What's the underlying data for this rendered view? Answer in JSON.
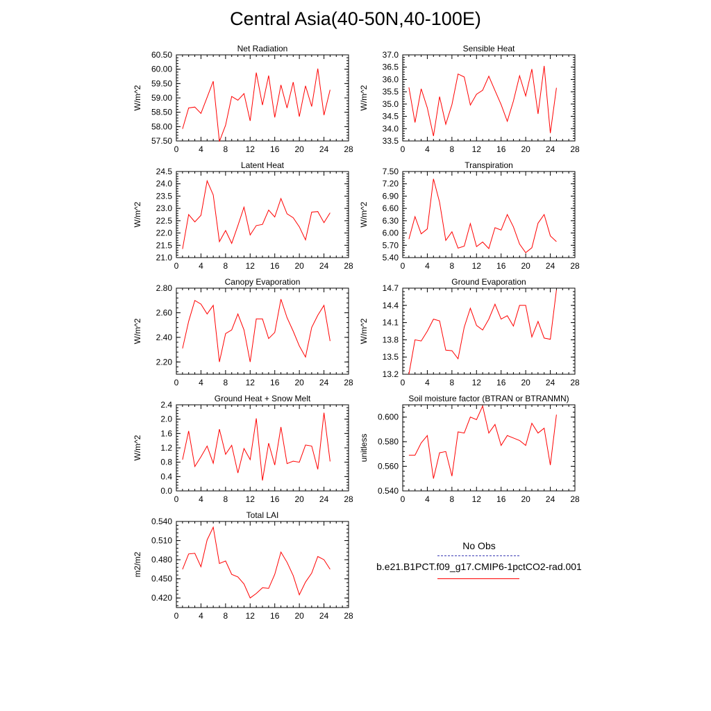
{
  "title": "Central Asia(40-50N,40-100E)",
  "colors": {
    "series": "#ff0000",
    "obs": "#3b3bb3",
    "axis": "#000000"
  },
  "legend": {
    "obs_label": "No Obs",
    "model_label": "b.e21.B1PCT.f09_g17.CMIP6-1pctCO2-rad.001"
  },
  "chart_data": [
    {
      "type": "line",
      "title": "Net Radiation",
      "ylabel": "W/m^2",
      "ylim": [
        57.5,
        60.5
      ],
      "xlim": [
        0,
        28
      ],
      "xticks": [
        0,
        4,
        8,
        12,
        16,
        20,
        24,
        28
      ],
      "yticks": [
        "57.50",
        "58.00",
        "58.50",
        "59.00",
        "59.50",
        "60.00",
        "60.50"
      ],
      "x": [
        1,
        2,
        3,
        4,
        5,
        6,
        7,
        8,
        9,
        10,
        11,
        12,
        13,
        14,
        15,
        16,
        17,
        18,
        19,
        20,
        21,
        22,
        23,
        24,
        25
      ],
      "values": [
        57.92,
        58.65,
        58.68,
        58.46,
        59.02,
        59.58,
        57.48,
        58.05,
        59.05,
        58.92,
        59.15,
        58.2,
        59.88,
        58.75,
        59.78,
        58.32,
        59.45,
        58.65,
        59.55,
        58.35,
        59.42,
        58.7,
        60.02,
        58.4,
        59.28
      ]
    },
    {
      "type": "line",
      "title": "Sensible Heat",
      "ylabel": "W/m^2",
      "ylim": [
        33.5,
        37.0
      ],
      "xlim": [
        0,
        28
      ],
      "xticks": [
        0,
        4,
        8,
        12,
        16,
        20,
        24,
        28
      ],
      "yticks": [
        "33.5",
        "34.0",
        "34.5",
        "35.0",
        "35.5",
        "36.0",
        "36.5",
        "37.0"
      ],
      "x": [
        1,
        2,
        3,
        4,
        5,
        6,
        7,
        8,
        9,
        10,
        11,
        12,
        13,
        14,
        15,
        16,
        17,
        18,
        19,
        20,
        21,
        22,
        23,
        24,
        25
      ],
      "values": [
        35.68,
        34.25,
        35.62,
        34.85,
        33.7,
        35.3,
        34.18,
        34.98,
        36.22,
        36.1,
        34.96,
        35.4,
        35.56,
        36.13,
        35.55,
        34.98,
        34.3,
        35.12,
        36.15,
        35.33,
        36.42,
        34.6,
        36.55,
        33.82,
        35.66
      ]
    },
    {
      "type": "line",
      "title": "Latent Heat",
      "ylabel": "W/m^2",
      "ylim": [
        21.0,
        24.5
      ],
      "xlim": [
        0,
        28
      ],
      "xticks": [
        0,
        4,
        8,
        12,
        16,
        20,
        24,
        28
      ],
      "yticks": [
        "21.0",
        "21.5",
        "22.0",
        "22.5",
        "23.0",
        "23.5",
        "24.0",
        "24.5"
      ],
      "x": [
        1,
        2,
        3,
        4,
        5,
        6,
        7,
        8,
        9,
        10,
        11,
        12,
        13,
        14,
        15,
        16,
        17,
        18,
        19,
        20,
        21,
        22,
        23,
        24,
        25
      ],
      "values": [
        21.35,
        22.75,
        22.45,
        22.72,
        24.12,
        23.55,
        21.65,
        22.1,
        21.58,
        22.3,
        23.05,
        21.92,
        22.3,
        22.35,
        22.93,
        22.65,
        23.4,
        22.78,
        22.62,
        22.25,
        21.72,
        22.85,
        22.87,
        22.42,
        22.82
      ]
    },
    {
      "type": "line",
      "title": "Transpiration",
      "ylabel": "W/m^2",
      "ylim": [
        5.4,
        7.5
      ],
      "xlim": [
        0,
        28
      ],
      "xticks": [
        0,
        4,
        8,
        12,
        16,
        20,
        24,
        28
      ],
      "yticks": [
        "5.40",
        "5.70",
        "6.00",
        "6.30",
        "6.60",
        "6.90",
        "7.20",
        "7.50"
      ],
      "x": [
        1,
        2,
        3,
        4,
        5,
        6,
        7,
        8,
        9,
        10,
        11,
        12,
        13,
        14,
        15,
        16,
        17,
        18,
        19,
        20,
        21,
        22,
        23,
        24,
        25
      ],
      "values": [
        5.85,
        6.4,
        5.98,
        6.1,
        7.32,
        6.75,
        5.82,
        6.03,
        5.63,
        5.68,
        6.23,
        5.67,
        5.78,
        5.62,
        6.13,
        6.07,
        6.45,
        6.15,
        5.73,
        5.52,
        5.64,
        6.24,
        6.45,
        5.93,
        5.79
      ]
    },
    {
      "type": "line",
      "title": "Canopy Evaporation",
      "ylabel": "W/m^2",
      "ylim": [
        2.1,
        2.8
      ],
      "xlim": [
        0,
        28
      ],
      "xticks": [
        0,
        4,
        8,
        12,
        16,
        20,
        24,
        28
      ],
      "yticks": [
        "2.20",
        "2.40",
        "2.60",
        "2.80"
      ],
      "x": [
        1,
        2,
        3,
        4,
        5,
        6,
        7,
        8,
        9,
        10,
        11,
        12,
        13,
        14,
        15,
        16,
        17,
        18,
        19,
        20,
        21,
        22,
        23,
        24,
        25
      ],
      "values": [
        2.31,
        2.53,
        2.7,
        2.67,
        2.59,
        2.66,
        2.2,
        2.43,
        2.46,
        2.59,
        2.46,
        2.2,
        2.55,
        2.55,
        2.39,
        2.44,
        2.71,
        2.56,
        2.45,
        2.33,
        2.24,
        2.48,
        2.58,
        2.66,
        2.37
      ]
    },
    {
      "type": "line",
      "title": "Ground Evaporation",
      "ylabel": "W/m^2",
      "ylim": [
        13.2,
        14.7
      ],
      "xlim": [
        0,
        28
      ],
      "xticks": [
        0,
        4,
        8,
        12,
        16,
        20,
        24,
        28
      ],
      "yticks": [
        "13.2",
        "13.5",
        "13.8",
        "14.1",
        "14.4",
        "14.7"
      ],
      "x": [
        1,
        2,
        3,
        4,
        5,
        6,
        7,
        8,
        9,
        10,
        11,
        12,
        13,
        14,
        15,
        16,
        17,
        18,
        19,
        20,
        21,
        22,
        23,
        24,
        25
      ],
      "values": [
        13.2,
        13.8,
        13.78,
        13.95,
        14.16,
        14.13,
        13.62,
        13.61,
        13.47,
        14.02,
        14.35,
        14.05,
        13.97,
        14.16,
        14.42,
        14.16,
        14.22,
        14.04,
        14.4,
        14.4,
        13.85,
        14.12,
        13.83,
        13.81,
        14.67
      ]
    },
    {
      "type": "line",
      "title": "Ground Heat + Snow Melt",
      "ylabel": "W/m^2",
      "ylim": [
        0.0,
        2.4
      ],
      "xlim": [
        0,
        28
      ],
      "xticks": [
        0,
        4,
        8,
        12,
        16,
        20,
        24,
        28
      ],
      "yticks": [
        "0.0",
        "0.4",
        "0.8",
        "1.2",
        "1.6",
        "2.0",
        "2.4"
      ],
      "x": [
        1,
        2,
        3,
        4,
        5,
        6,
        7,
        8,
        9,
        10,
        11,
        12,
        13,
        14,
        15,
        16,
        17,
        18,
        19,
        20,
        21,
        22,
        23,
        24,
        25
      ],
      "values": [
        0.87,
        1.67,
        0.68,
        0.95,
        1.25,
        0.77,
        1.72,
        1.02,
        1.27,
        0.5,
        1.18,
        0.87,
        2.02,
        0.29,
        1.33,
        0.72,
        1.78,
        0.76,
        0.83,
        0.8,
        1.28,
        1.25,
        0.6,
        2.18,
        0.82
      ]
    },
    {
      "type": "line",
      "title": "Soil moisture factor (BTRAN or BTRANMN)",
      "ylabel": "unitless",
      "ylim": [
        0.54,
        0.61
      ],
      "xlim": [
        0,
        28
      ],
      "xticks": [
        0,
        4,
        8,
        12,
        16,
        20,
        24,
        28
      ],
      "yticks": [
        "0.540",
        "0.560",
        "0.580",
        "0.600"
      ],
      "x": [
        1,
        2,
        3,
        4,
        5,
        6,
        7,
        8,
        9,
        10,
        11,
        12,
        13,
        14,
        15,
        16,
        17,
        18,
        19,
        20,
        21,
        22,
        23,
        24,
        25
      ],
      "values": [
        0.569,
        0.569,
        0.579,
        0.585,
        0.55,
        0.571,
        0.572,
        0.552,
        0.588,
        0.587,
        0.6,
        0.598,
        0.609,
        0.587,
        0.594,
        0.577,
        0.585,
        0.583,
        0.581,
        0.577,
        0.595,
        0.587,
        0.591,
        0.561,
        0.602
      ]
    },
    {
      "type": "line",
      "title": "Total LAI",
      "ylabel": "m2/m2",
      "ylim": [
        0.405,
        0.54
      ],
      "xlim": [
        0,
        28
      ],
      "xticks": [
        0,
        4,
        8,
        12,
        16,
        20,
        24,
        28
      ],
      "yticks": [
        "0.420",
        "0.450",
        "0.480",
        "0.510",
        "0.540"
      ],
      "x": [
        1,
        2,
        3,
        4,
        5,
        6,
        7,
        8,
        9,
        10,
        11,
        12,
        13,
        14,
        15,
        16,
        17,
        18,
        19,
        20,
        21,
        22,
        23,
        24,
        25
      ],
      "values": [
        0.465,
        0.489,
        0.49,
        0.469,
        0.511,
        0.531,
        0.474,
        0.478,
        0.457,
        0.453,
        0.442,
        0.42,
        0.427,
        0.436,
        0.435,
        0.457,
        0.492,
        0.476,
        0.455,
        0.425,
        0.445,
        0.459,
        0.485,
        0.48,
        0.465
      ]
    }
  ]
}
